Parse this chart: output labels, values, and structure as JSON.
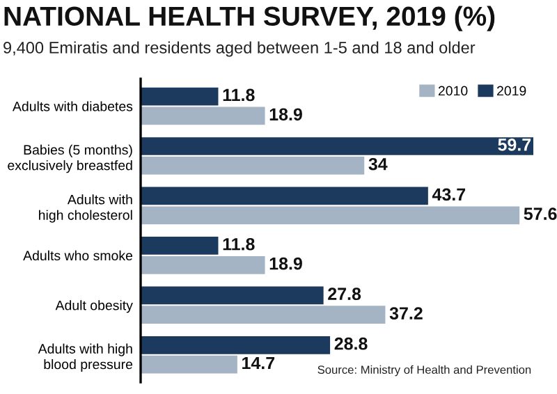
{
  "chart_data": {
    "type": "bar",
    "orientation": "horizontal",
    "title": "NATIONAL HEALTH SURVEY, 2019 (%)",
    "subtitle": "9,400 Emiratis and residents aged between 1-5 and 18 and older",
    "categories": [
      "Adults with diabetes",
      "Babies (5 months)\nexclusively breastfed",
      "Adults with\nhigh cholesterol",
      "Adults who smoke",
      "Adult obesity",
      "Adults with high\nblood pressure"
    ],
    "series": [
      {
        "name": "2019",
        "color": "#1b3a5e",
        "values": [
          11.8,
          59.7,
          43.7,
          11.8,
          27.8,
          28.8
        ]
      },
      {
        "name": "2010",
        "color": "#a5b4c5",
        "values": [
          18.9,
          34,
          57.6,
          18.9,
          37.2,
          14.7
        ]
      }
    ],
    "data_labels": true,
    "legend": "top right",
    "grid": false,
    "tick_labels": "y",
    "annotations": [
      "Source: Ministry of Health and Prevention"
    ]
  }
}
